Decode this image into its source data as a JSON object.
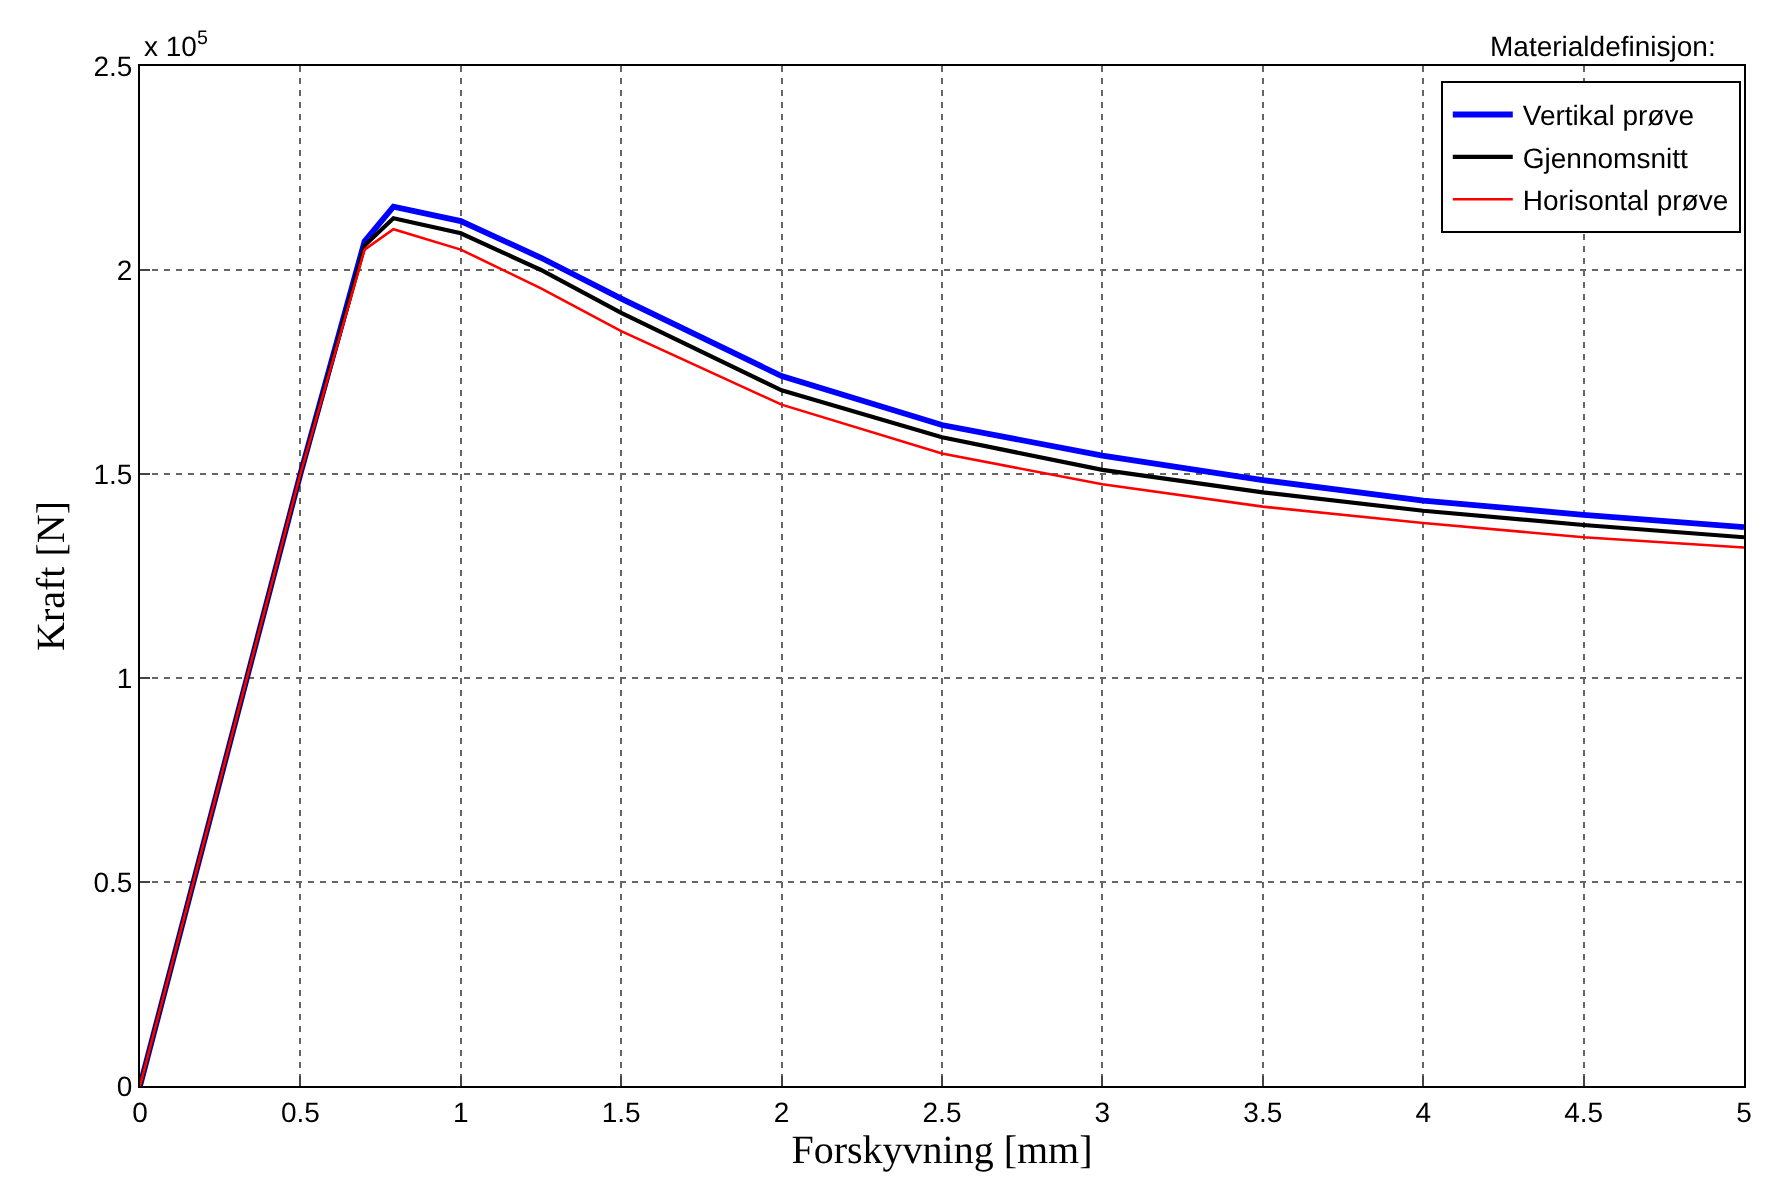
{
  "chart_data": {
    "type": "line",
    "xlabel": "Forskyvning [mm]",
    "ylabel": "Kraft [N]",
    "legend_title": "Materialdefinisjon:",
    "annotations": [
      "x 10$^{5}$"
    ],
    "x": [
      0,
      0.5,
      0.7,
      0.79,
      1,
      1.25,
      1.5,
      2,
      2.5,
      3,
      3.5,
      4,
      4.5,
      5
    ],
    "series": [
      {
        "name": "Vertikal prøve",
        "color": "#0000ff",
        "values": [
          0,
          1.5,
          2.07,
          2.155,
          2.12,
          2.03,
          1.93,
          1.74,
          1.62,
          1.545,
          1.485,
          1.435,
          1.4,
          1.37
        ]
      },
      {
        "name": "Gjennomsnitt",
        "color": "#000000",
        "values": [
          0,
          1.5,
          2.06,
          2.127,
          2.09,
          2.0,
          1.895,
          1.705,
          1.59,
          1.51,
          1.455,
          1.41,
          1.375,
          1.345
        ]
      },
      {
        "name": "Horisontal prøve",
        "color": "#ff0000",
        "values": [
          0,
          1.5,
          2.05,
          2.1,
          2.05,
          1.955,
          1.85,
          1.67,
          1.55,
          1.475,
          1.42,
          1.38,
          1.345,
          1.32
        ]
      }
    ],
    "xlim": [
      0,
      5
    ],
    "xticks": [
      0,
      0.5,
      1,
      1.5,
      2,
      2.5,
      3,
      3.5,
      4,
      4.5,
      5
    ],
    "ylim": [
      0,
      2.5
    ],
    "yticks": [
      0,
      0.5,
      1,
      1.5,
      2,
      2.5
    ],
    "grid": true,
    "legend": "top right",
    "marker": "none",
    "line_style": "solid"
  }
}
